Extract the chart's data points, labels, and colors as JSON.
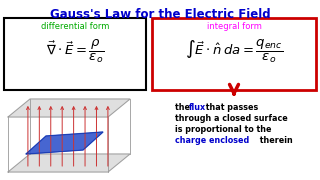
{
  "title": "Gauss's Law for the Electric Field",
  "title_color": "#0000cc",
  "title_fontsize": 8.5,
  "bg_color": "#ffffff",
  "left_box_label": "differential form",
  "left_box_label_color": "#00aa00",
  "left_box_border_color": "#000000",
  "left_formula": "$\\vec{\\nabla}\\cdot\\vec{E} = \\dfrac{\\rho}{\\varepsilon_o}$",
  "right_box_label": "integral form",
  "right_box_label_color": "#ff00ff",
  "right_box_border_color": "#cc0000",
  "right_formula": "$\\int \\vec{E}\\cdot\\hat{n}\\, da = \\dfrac{q_{enc}}{\\varepsilon_o}$",
  "arrow_color": "#cc0000",
  "desc_color": "#000000",
  "desc_highlight_color": "#0000cc",
  "desc_fontsize": 5.8
}
